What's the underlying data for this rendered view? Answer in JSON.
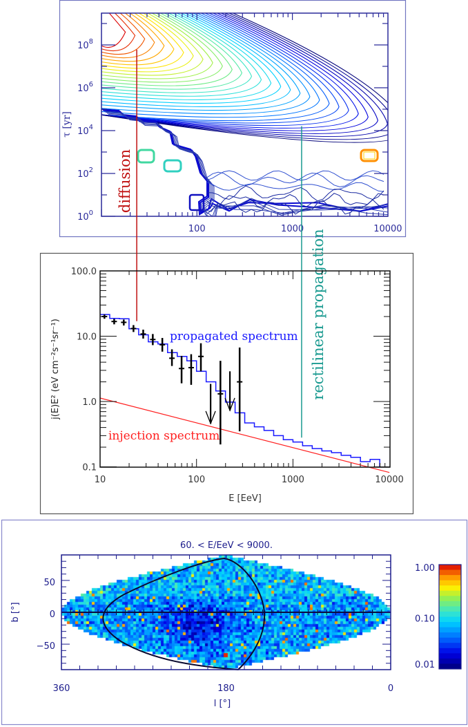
{
  "colors": {
    "axis_top": "#2a2a9a",
    "axis_mid": "#222222",
    "axis_map": "#1c1c8c",
    "diffusion": "#c01010",
    "rectilinear": "#1a9a90",
    "propagated": "#1a1aff",
    "injection": "#ff2020",
    "data_points": "#000000"
  },
  "chart_data": [
    {
      "type": "contour",
      "xscale": "log",
      "yscale": "log",
      "xlim": [
        10,
        10000
      ],
      "ylim": [
        1,
        3000000000.0
      ],
      "xticks": [
        "100",
        "1000",
        "10000"
      ],
      "yticks": [
        {
          "base": "10",
          "exp": "0"
        },
        {
          "base": "10",
          "exp": "2"
        },
        {
          "base": "10",
          "exp": "4"
        },
        {
          "base": "10",
          "exp": "6"
        },
        {
          "base": "10",
          "exp": "8"
        }
      ],
      "xlabel": "",
      "ylabel": "τ [yr]",
      "colormap": "rainbow (red = highest, dark blue = lowest)",
      "annotations": [
        {
          "text": "diffusion",
          "E": 24,
          "tau_top": 60000000.0,
          "color_key": "diffusion"
        },
        {
          "text": "rectilinear propagation",
          "E": 1230,
          "tau_top": 16000.0,
          "color_key": "rectilinear"
        }
      ]
    },
    {
      "type": "line",
      "xscale": "log",
      "yscale": "log",
      "xlim": [
        10,
        10000
      ],
      "ylim": [
        0.1,
        100
      ],
      "xticks": [
        "10",
        "100",
        "1000",
        "10000"
      ],
      "yticks": [
        "0.1",
        "1.0",
        "10.0",
        "100.0"
      ],
      "xlabel": "E [EeV]",
      "ylabel": "j(E)E² (eV cm⁻²s⁻¹sr⁻¹)",
      "series": [
        {
          "name": "propagated spectrum",
          "style": "step",
          "bin_edges_log10E": [
            1.0,
            1.1,
            1.2,
            1.3,
            1.4,
            1.5,
            1.6,
            1.7,
            1.8,
            1.9,
            2.0,
            2.1,
            2.2,
            2.3,
            2.4,
            2.5,
            2.6,
            2.7,
            2.8,
            2.9,
            3.0,
            3.1,
            3.2,
            3.3,
            3.4,
            3.5,
            3.6,
            3.7,
            3.8,
            3.9,
            4.0
          ],
          "values": [
            21.5,
            18.7,
            18.5,
            13.0,
            10.5,
            8.2,
            7.6,
            5.6,
            4.9,
            4.2,
            2.9,
            2.0,
            1.45,
            0.98,
            0.67,
            0.47,
            0.41,
            0.36,
            0.3,
            0.26,
            0.24,
            0.21,
            0.19,
            0.175,
            0.165,
            0.15,
            0.14,
            0.12,
            0.13,
            0.095
          ]
        },
        {
          "name": "injection spectrum",
          "style": "line",
          "x": [
            10,
            10000
          ],
          "y": [
            1.13,
            0.082
          ]
        },
        {
          "name": "",
          "style": "errorbar",
          "points": [
            {
              "E": 11.1,
              "y": 20.0,
              "lo": 18.5,
              "hi": 21.5
            },
            {
              "E": 14.0,
              "y": 16.8,
              "lo": 15.2,
              "hi": 18.4
            },
            {
              "E": 17.6,
              "y": 16.3,
              "lo": 14.6,
              "hi": 18.0
            },
            {
              "E": 22.2,
              "y": 13.1,
              "lo": 11.6,
              "hi": 14.8
            },
            {
              "E": 28.0,
              "y": 10.8,
              "lo": 9.2,
              "hi": 12.6
            },
            {
              "E": 35.2,
              "y": 8.9,
              "lo": 7.3,
              "hi": 10.8
            },
            {
              "E": 44.2,
              "y": 7.4,
              "lo": 5.8,
              "hi": 9.4
            },
            {
              "E": 55.6,
              "y": 4.6,
              "lo": 3.5,
              "hi": 6.3
            },
            {
              "E": 70.0,
              "y": 3.2,
              "lo": 1.9,
              "hi": 5.0
            },
            {
              "E": 88.0,
              "y": 3.3,
              "lo": 1.8,
              "hi": 5.3
            },
            {
              "E": 111.0,
              "y": 4.9,
              "lo": 2.9,
              "hi": 7.8
            },
            {
              "E": 177.0,
              "y": 1.31,
              "lo": 0.22,
              "hi": 4.2
            },
            {
              "E": 280.0,
              "y": 2.0,
              "lo": 0.35,
              "hi": 6.7
            }
          ],
          "upper_limits": [
            {
              "E": 140.0,
              "top": 1.86,
              "tip": 0.46
            },
            {
              "E": 222.0,
              "top": 2.9,
              "tip": 0.73
            }
          ]
        }
      ],
      "labels": {
        "propagated": {
          "text": "propagated spectrum"
        },
        "injection": {
          "text": "injection spectrum"
        }
      },
      "connector_ends": {
        "diffusion_y": 17,
        "rectilinear_y": 0.28
      }
    },
    {
      "type": "heatmap",
      "projection": "sinusoidal sky map (galactic coordinates)",
      "title": "60. < E/EeV <  9000.",
      "xlabel": "l  [°]",
      "ylabel": "b  [°]",
      "xlim": [
        360,
        0
      ],
      "ylim": [
        -90,
        90
      ],
      "xticks": [
        "360",
        "180",
        "0"
      ],
      "yticks": [
        "50",
        "0",
        "−50"
      ],
      "colorbar": {
        "scale": "log",
        "range": [
          0.01,
          1.0
        ],
        "ticks": [
          "1.00",
          "0.10",
          "0.01"
        ],
        "colormap": "rainbow"
      },
      "overlays": [
        "galactic equator line b=0",
        "closed black contour curve"
      ]
    }
  ]
}
